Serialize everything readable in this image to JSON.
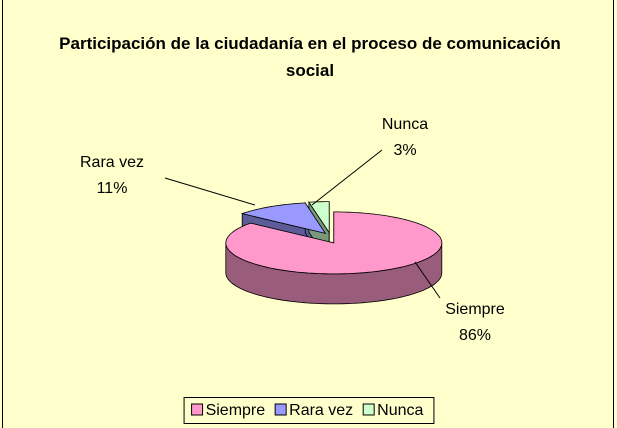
{
  "chart_data": {
    "type": "pie3d",
    "title": "Participación de la ciudadanía en el proceso de comunicación social",
    "categories": [
      "Siempre",
      "Rara vez",
      "Nunca"
    ],
    "values": [
      86,
      11,
      3
    ],
    "value_labels": [
      "86%",
      "11%",
      "3%"
    ],
    "colors": [
      "#FF99CC",
      "#9999FF",
      "#CCFFCC"
    ],
    "legend": "bottom"
  }
}
